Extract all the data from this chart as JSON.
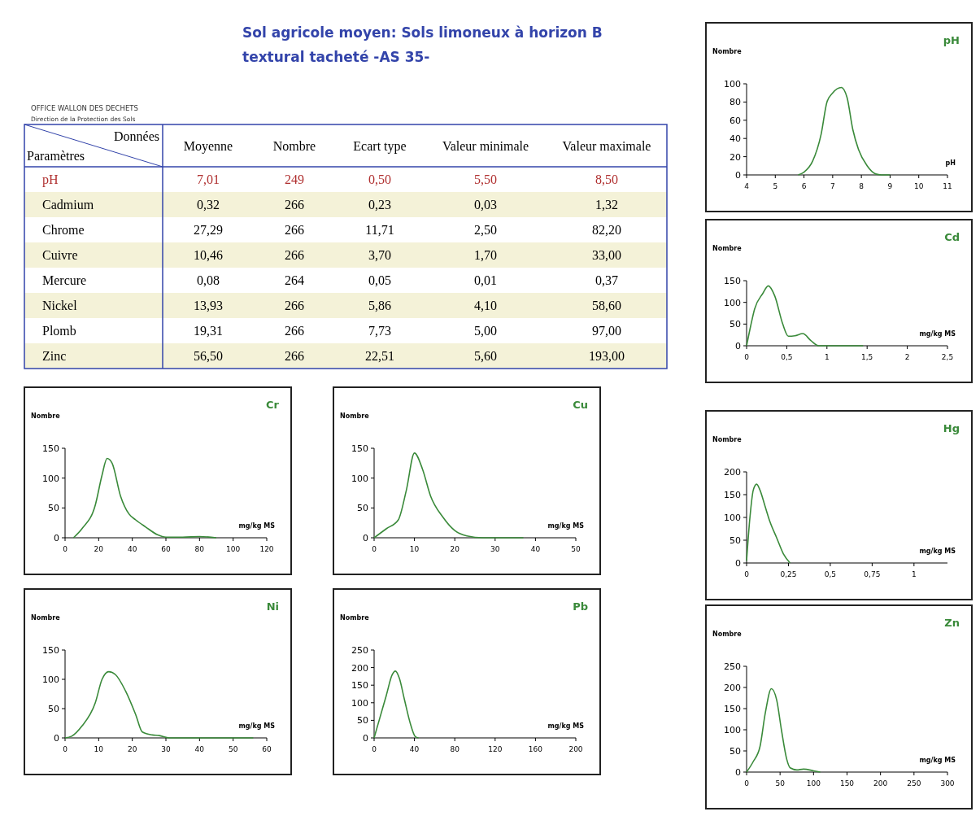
{
  "chart_data": [
    {
      "type": "other",
      "title": "Sol agricole moyen: Sols limoneux à horizon B textural tacheté -AS 35-",
      "annotations": [
        "OFFICE WALLON DES DECHETS",
        "Direction de la Protection des Sols",
        "Données",
        "Paramètres"
      ],
      "categories": [
        "Moyenne",
        "Nombre",
        "Ecart type",
        "Valeur minimale",
        "Valeur maximale"
      ],
      "y_categories": [
        "pH",
        "Cadmium",
        "Chrome",
        "Cuivre",
        "Mercure",
        "Nickel",
        "Plomb",
        "Zinc"
      ],
      "colors": [
        "#b03030",
        "#000000",
        "#000000",
        "#000000",
        "#000000",
        "#000000",
        "#000000",
        "#000000"
      ],
      "cell_labels": [
        [
          "7,01",
          "249",
          "0,50",
          "5,50",
          "8,50"
        ],
        [
          "0,32",
          "266",
          "0,23",
          "0,03",
          "1,32"
        ],
        [
          "27,29",
          "266",
          "11,71",
          "2,50",
          "82,20"
        ],
        [
          "10,46",
          "266",
          "3,70",
          "1,70",
          "33,00"
        ],
        [
          "0,08",
          "264",
          "0,05",
          "0,01",
          "0,37"
        ],
        [
          "13,93",
          "266",
          "5,86",
          "4,10",
          "58,60"
        ],
        [
          "19,31",
          "266",
          "7,73",
          "5,00",
          "97,00"
        ],
        [
          "56,50",
          "266",
          "22,51",
          "5,60",
          "193,00"
        ]
      ]
    },
    {
      "type": "line",
      "title": "pH",
      "xlabel": "pH",
      "ylabel": "Nombre",
      "xlim": [
        4,
        11
      ],
      "xticks": [
        4,
        5,
        6,
        7,
        8,
        9,
        10,
        11
      ],
      "ylim": [
        0,
        100
      ],
      "yticks": [
        0,
        20,
        40,
        60,
        80,
        100
      ],
      "grid": false,
      "series": [
        {
          "color": "#3a8a3a",
          "x": [
            5.8,
            6,
            6.3,
            6.6,
            6.8,
            7,
            7.3,
            7.5,
            7.7,
            7.9,
            8.2,
            8.5,
            8.7,
            9
          ],
          "values": [
            0,
            3,
            15,
            45,
            80,
            90,
            96,
            85,
            50,
            28,
            10,
            1,
            0,
            0
          ]
        }
      ]
    },
    {
      "type": "line",
      "title": "Cd",
      "xlabel": "mg/kg MS",
      "ylabel": "Nombre",
      "xlim": [
        0,
        2.5
      ],
      "xticks": [
        0,
        {
          "value": 0.5,
          "label": "0,5"
        },
        1,
        {
          "value": 1.5,
          "label": "1,5"
        },
        2,
        {
          "value": 2.5,
          "label": "2,5"
        }
      ],
      "ylim": [
        0,
        150
      ],
      "yticks": [
        0,
        50,
        100,
        150
      ],
      "grid": false,
      "series": [
        {
          "color": "#3a8a3a",
          "x": [
            0,
            0.05,
            0.1,
            0.2,
            0.27,
            0.35,
            0.45,
            0.52,
            0.6,
            0.7,
            0.8,
            0.9,
            1.2,
            1.45
          ],
          "values": [
            0,
            45,
            85,
            120,
            138,
            115,
            50,
            22,
            23,
            28,
            12,
            0,
            0,
            0
          ]
        }
      ]
    },
    {
      "type": "line",
      "title": "Cr",
      "xlabel": "mg/kg MS",
      "ylabel": "Nombre",
      "xlim": [
        0,
        120
      ],
      "xticks": [
        0,
        20,
        40,
        60,
        80,
        100,
        120
      ],
      "ylim": [
        0,
        150
      ],
      "yticks": [
        0,
        50,
        100,
        150
      ],
      "grid": false,
      "series": [
        {
          "color": "#3a8a3a",
          "x": [
            5,
            10,
            18,
            22,
            25,
            28,
            33,
            38,
            42,
            48,
            55,
            60,
            70,
            80,
            90
          ],
          "values": [
            0,
            15,
            55,
            105,
            133,
            125,
            70,
            40,
            30,
            18,
            5,
            1,
            1,
            2,
            0
          ]
        }
      ]
    },
    {
      "type": "line",
      "title": "Cu",
      "xlabel": "mg/kg MS",
      "ylabel": "Nombre",
      "xlim": [
        0,
        50
      ],
      "xticks": [
        0,
        10,
        20,
        30,
        40,
        50
      ],
      "ylim": [
        0,
        150
      ],
      "yticks": [
        0,
        50,
        100,
        150
      ],
      "grid": false,
      "series": [
        {
          "color": "#3a8a3a",
          "x": [
            0,
            3,
            6,
            8,
            10,
            12,
            14,
            17,
            20,
            23,
            27,
            37
          ],
          "values": [
            0,
            15,
            30,
            80,
            142,
            115,
            70,
            35,
            12,
            3,
            0,
            0
          ]
        }
      ]
    },
    {
      "type": "line",
      "title": "Hg",
      "xlabel": "mg/kg MS",
      "ylabel": "Nombre",
      "xlim": [
        0,
        1.2
      ],
      "xticks": [
        0,
        {
          "value": 0.25,
          "label": "0,25"
        },
        {
          "value": 0.5,
          "label": "0,5"
        },
        {
          "value": 0.75,
          "label": "0,75"
        },
        1
      ],
      "ylim": [
        0,
        200
      ],
      "yticks": [
        0,
        50,
        100,
        150,
        200
      ],
      "grid": false,
      "series": [
        {
          "color": "#3a8a3a",
          "x": [
            0,
            0.02,
            0.04,
            0.06,
            0.08,
            0.11,
            0.14,
            0.18,
            0.22,
            0.26
          ],
          "values": [
            5,
            100,
            160,
            173,
            160,
            125,
            90,
            55,
            20,
            0
          ]
        }
      ]
    },
    {
      "type": "line",
      "title": "Ni",
      "xlabel": "mg/kg MS",
      "ylabel": "Nombre",
      "xlim": [
        0,
        60
      ],
      "xticks": [
        0,
        10,
        20,
        30,
        40,
        50,
        60
      ],
      "ylim": [
        0,
        150
      ],
      "yticks": [
        0,
        50,
        100,
        150
      ],
      "grid": false,
      "series": [
        {
          "color": "#3a8a3a",
          "x": [
            0,
            2,
            5,
            9,
            11,
            13,
            15,
            18,
            21,
            23,
            26,
            28,
            31,
            46,
            56
          ],
          "values": [
            0,
            3,
            20,
            60,
            100,
            113,
            108,
            80,
            40,
            10,
            5,
            4,
            0,
            0,
            0
          ]
        }
      ]
    },
    {
      "type": "line",
      "title": "Pb",
      "xlabel": "mg/kg MS",
      "ylabel": "Nombre",
      "xlim": [
        0,
        200
      ],
      "xticks": [
        0,
        40,
        80,
        120,
        160,
        200
      ],
      "ylim": [
        0,
        250
      ],
      "yticks": [
        0,
        50,
        100,
        150,
        200,
        250
      ],
      "grid": false,
      "series": [
        {
          "color": "#3a8a3a",
          "x": [
            0,
            5,
            12,
            18,
            21,
            25,
            30,
            36,
            41,
            44
          ],
          "values": [
            0,
            50,
            120,
            180,
            190,
            170,
            110,
            40,
            3,
            0
          ]
        }
      ]
    },
    {
      "type": "line",
      "title": "Zn",
      "xlabel": "mg/kg MS",
      "ylabel": "Nombre",
      "xlim": [
        0,
        300
      ],
      "xticks": [
        0,
        50,
        100,
        150,
        200,
        250,
        300
      ],
      "ylim": [
        0,
        250
      ],
      "yticks": [
        0,
        50,
        100,
        150,
        200,
        250
      ],
      "grid": false,
      "series": [
        {
          "color": "#3a8a3a",
          "x": [
            0,
            10,
            20,
            28,
            37,
            45,
            52,
            60,
            65,
            75,
            85,
            100,
            110
          ],
          "values": [
            0,
            25,
            60,
            140,
            197,
            170,
            100,
            30,
            10,
            5,
            7,
            3,
            0
          ]
        }
      ]
    }
  ]
}
